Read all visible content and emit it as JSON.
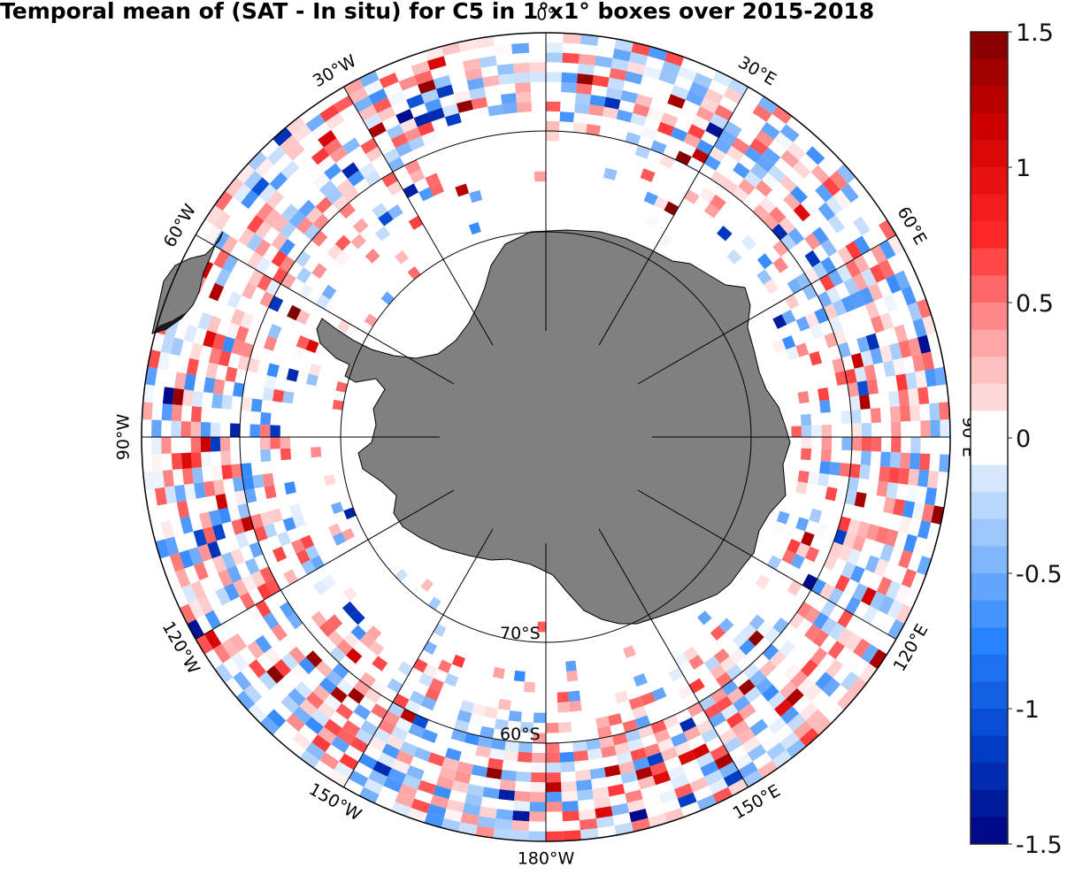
{
  "title": "Temporal mean of (SAT - In situ) for C5 in 1°x1° boxes over 2015-2018",
  "map": {
    "projection": "south-polar-stereographic",
    "land_color": "#808080",
    "ocean_color": "#ffffff",
    "meridian_labels": [
      {
        "text": "0°",
        "lon": 0
      },
      {
        "text": "30°E",
        "lon": 30
      },
      {
        "text": "60°E",
        "lon": 60
      },
      {
        "text": "90°E",
        "lon": 90
      },
      {
        "text": "120°E",
        "lon": 120
      },
      {
        "text": "150°E",
        "lon": 150
      },
      {
        "text": "180°W",
        "lon": 180
      },
      {
        "text": "150°W",
        "lon": -150
      },
      {
        "text": "120°W",
        "lon": -120
      },
      {
        "text": "90°W",
        "lon": -90
      },
      {
        "text": "60°W",
        "lon": -60
      },
      {
        "text": "30°W",
        "lon": -30
      }
    ],
    "parallel_labels": [
      {
        "text": "70°S",
        "lat": -70
      },
      {
        "text": "60°S",
        "lat": -60
      }
    ]
  },
  "colorbar": {
    "min": -1.5,
    "max": 1.5,
    "ticks": [
      "1.5",
      "1",
      "0.5",
      "0",
      "-0.5",
      "-1",
      "-1.5"
    ],
    "colormap": "blue-white-red",
    "low_color": "#00007f",
    "mid_color": "#ffffff",
    "high_color": "#7f0000"
  }
}
